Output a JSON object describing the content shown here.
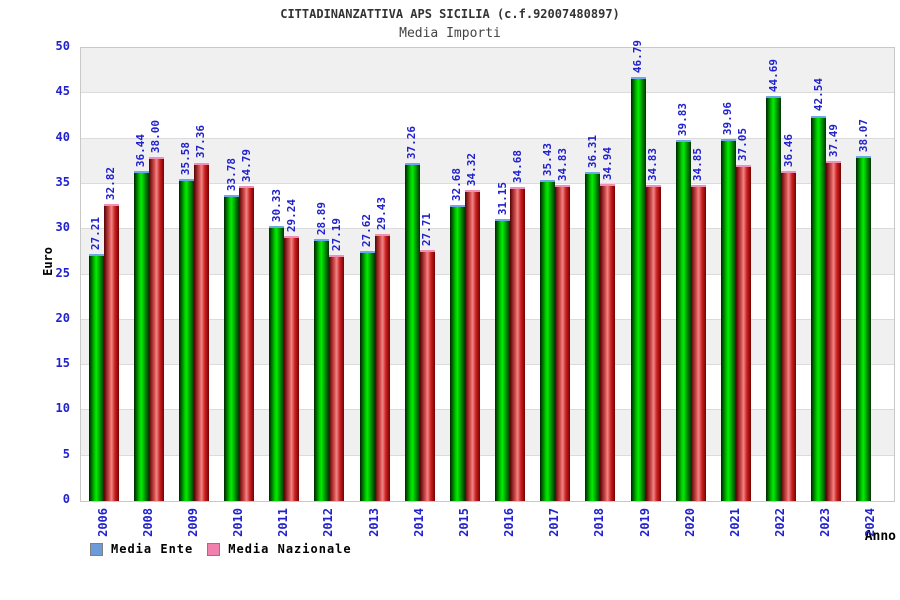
{
  "header": {
    "title": "CITTADINANZATTIVA APS SICILIA (c.f.92007480897)",
    "subtitle": "Media Importi"
  },
  "chart_data": {
    "type": "bar",
    "categories": [
      "2006",
      "2008",
      "2009",
      "2010",
      "2011",
      "2012",
      "2013",
      "2014",
      "2015",
      "2016",
      "2017",
      "2018",
      "2019",
      "2020",
      "2021",
      "2022",
      "2023",
      "2024"
    ],
    "series": [
      {
        "name": "Media Ente",
        "values": [
          27.21,
          36.44,
          35.58,
          33.78,
          30.33,
          28.89,
          27.62,
          37.26,
          32.68,
          31.15,
          35.43,
          36.31,
          46.79,
          39.83,
          39.96,
          44.69,
          42.54,
          38.07
        ]
      },
      {
        "name": "Media Nazionale",
        "values": [
          32.82,
          38.0,
          37.36,
          34.79,
          29.24,
          27.19,
          29.43,
          27.71,
          34.32,
          34.68,
          34.83,
          34.94,
          34.83,
          34.85,
          37.05,
          36.46,
          37.49,
          null
        ]
      }
    ],
    "title": "CITTADINANZATTIVA APS SICILIA (c.f.92007480897)",
    "subtitle": "Media Importi",
    "xlabel": "Anno",
    "ylabel": "Euro",
    "ylim": [
      0,
      50
    ],
    "ytick_step": 5,
    "yticks": [
      0,
      5,
      10,
      15,
      20,
      25,
      30,
      35,
      40,
      45,
      50
    ],
    "grid": "horizontal-bands-alternating",
    "legend_position": "bottom-left",
    "value_label_format": "2-decimals-rotated-90"
  },
  "colors": {
    "tick_text": "#2222CC",
    "value_label_text": "#2222CC",
    "title_text": "#333333",
    "subtitle_text": "#444444",
    "axis_title_text": "#000000",
    "band_gray": "#F0F0F0",
    "band_white": "#FFFFFF",
    "gridline": "#DBDBDB",
    "plot_border": "#C8C8C8",
    "legend_ente_swatch": "#6B9CD9",
    "legend_nazionale_swatch": "#F080AC",
    "green_bar_gradient": [
      "#002200",
      "#00CC00",
      "#00EE00",
      "#009900",
      "#003300"
    ],
    "green_bar_cap": "#6FA8E8",
    "red_bar_gradient": [
      "#550000",
      "#DD5555",
      "#EE8888",
      "#CC2222",
      "#770000"
    ],
    "red_bar_cap": "#F090B8"
  }
}
